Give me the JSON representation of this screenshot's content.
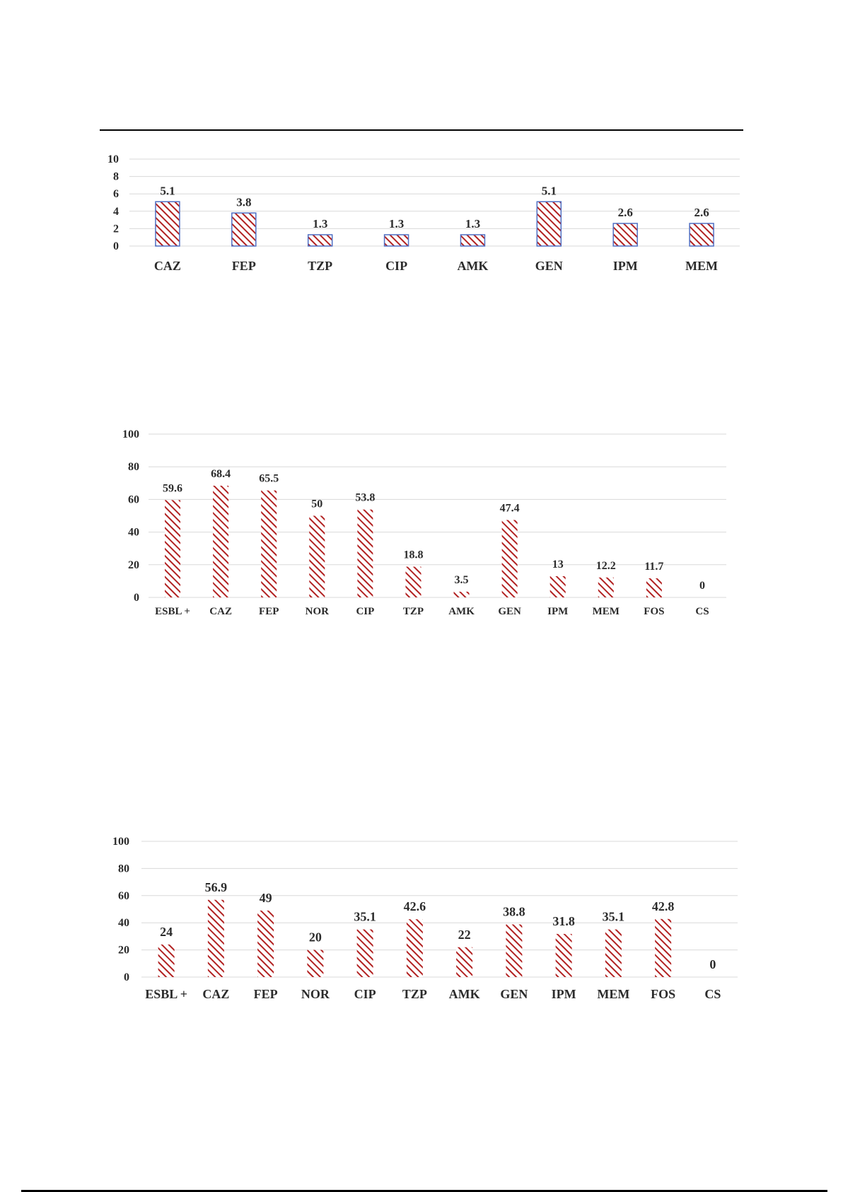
{
  "chart_data": [
    {
      "type": "bar",
      "categories": [
        "CAZ",
        "FEP",
        "TZP",
        "CIP",
        "AMK",
        "GEN",
        "IPM",
        "MEM"
      ],
      "values": [
        5.1,
        3.8,
        1.3,
        1.3,
        1.3,
        5.1,
        2.6,
        2.6
      ],
      "labels": [
        "5.1",
        "3.8",
        "1.3",
        "1.3",
        "1.3",
        "5.1",
        "2.6",
        "2.6"
      ],
      "yticks": [
        "0",
        "2",
        "4",
        "6",
        "8",
        "10"
      ],
      "ylim": [
        0,
        10
      ],
      "grid": true,
      "bar_fill": "hatched",
      "colors": {
        "hatch": "#b22222",
        "outline": "#4f6fc4",
        "grid": "#d9d9d9"
      }
    },
    {
      "type": "bar",
      "categories": [
        "ESBL +",
        "CAZ",
        "FEP",
        "NOR",
        "CIP",
        "TZP",
        "AMK",
        "GEN",
        "IPM",
        "MEM",
        "FOS",
        "CS"
      ],
      "values": [
        59.6,
        68.4,
        65.5,
        50,
        53.8,
        18.8,
        3.5,
        47.4,
        13,
        12.2,
        11.7,
        0
      ],
      "labels": [
        "59.6",
        "68.4",
        "65.5",
        "50",
        "53.8",
        "18.8",
        "3.5",
        "47.4",
        "13",
        "12.2",
        "11.7",
        "0"
      ],
      "yticks": [
        "0",
        "20",
        "40",
        "60",
        "80",
        "100"
      ],
      "ylim": [
        0,
        100
      ],
      "grid": true,
      "bar_fill": "hatched",
      "colors": {
        "hatch": "#b22222",
        "grid": "#d9d9d9"
      }
    },
    {
      "type": "bar",
      "categories": [
        "ESBL +",
        "CAZ",
        "FEP",
        "NOR",
        "CIP",
        "TZP",
        "AMK",
        "GEN",
        "IPM",
        "MEM",
        "FOS",
        "CS"
      ],
      "values": [
        24,
        56.9,
        49,
        20,
        35.1,
        42.6,
        22,
        38.8,
        31.8,
        35.1,
        42.8,
        0
      ],
      "labels": [
        "24",
        "56.9",
        "49",
        "20",
        "35.1",
        "42.6",
        "22",
        "38.8",
        "31.8",
        "35.1",
        "42.8",
        "0"
      ],
      "yticks": [
        "0",
        "20",
        "40",
        "60",
        "80",
        "100"
      ],
      "ylim": [
        0,
        100
      ],
      "grid": true,
      "bar_fill": "hatched",
      "colors": {
        "hatch": "#b22222",
        "grid": "#d9d9d9"
      }
    }
  ]
}
